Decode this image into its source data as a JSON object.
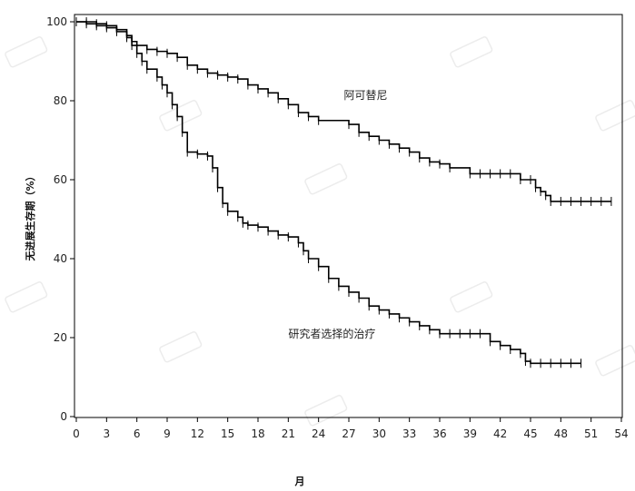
{
  "chart_data": {
    "type": "line",
    "title": "",
    "xlabel": "月",
    "ylabel": "无进展生存期（%）",
    "xlim": [
      0,
      54
    ],
    "ylim": [
      0,
      100
    ],
    "x_ticks": [
      "0",
      "3",
      "6",
      "9",
      "12",
      "15",
      "18",
      "21",
      "24",
      "27",
      "30",
      "33",
      "36",
      "39",
      "42",
      "45",
      "48",
      "51",
      "54"
    ],
    "y_ticks": [
      "0",
      "20",
      "40",
      "60",
      "80",
      "100"
    ],
    "grid": false,
    "legend": "none",
    "series": [
      {
        "name": "阿可替尼",
        "color": "#000000",
        "x": [
          0,
          1,
          2,
          3,
          4,
          5,
          5.5,
          6,
          7,
          8,
          9,
          10,
          11,
          12,
          13,
          14,
          15,
          16,
          17,
          18,
          19,
          20,
          21,
          22,
          23,
          24,
          27,
          28,
          29,
          30,
          31,
          32,
          33,
          34,
          35,
          36,
          37,
          39,
          40,
          41,
          42,
          43,
          44,
          45,
          45.5,
          46,
          46.5,
          47,
          48,
          49,
          50,
          51,
          52,
          53
        ],
        "y": [
          100,
          99.5,
          99,
          98.5,
          98,
          96.5,
          95,
          94,
          93,
          92.5,
          92,
          91,
          89,
          88,
          87,
          86.5,
          86,
          85.5,
          84,
          83,
          82,
          80.5,
          79,
          77,
          76,
          75,
          74,
          72,
          71,
          70,
          69,
          68,
          67,
          65.5,
          64.5,
          64,
          63,
          61.5,
          61.5,
          61.5,
          61.5,
          61.5,
          60,
          60,
          58,
          57,
          56,
          54.5,
          54.5,
          54.5,
          54.5,
          54.5,
          54.5,
          54.5
        ]
      },
      {
        "name": "研究者选择的治疗",
        "color": "#000000",
        "x": [
          0,
          1,
          2,
          3,
          4,
          5,
          5.5,
          6,
          6.5,
          7,
          8,
          8.5,
          9,
          9.5,
          10,
          10.5,
          11,
          12,
          13,
          13.5,
          14,
          14.5,
          15,
          16,
          16.5,
          17,
          18,
          19,
          20,
          21,
          22,
          22.5,
          23,
          24,
          25,
          26,
          27,
          28,
          29,
          30,
          31,
          32,
          33,
          34,
          35,
          36,
          37,
          38,
          39,
          40,
          41,
          42,
          43,
          44,
          44.5,
          45,
          46,
          47,
          48,
          49,
          50
        ],
        "y": [
          100,
          100,
          99.5,
          99,
          97.5,
          96,
          94,
          92,
          90,
          88,
          86,
          84,
          82,
          79,
          76,
          72,
          67,
          66.5,
          66,
          63,
          58,
          54,
          52,
          50.5,
          49,
          48.5,
          48,
          47,
          46,
          45.5,
          44,
          42,
          40,
          38,
          35,
          33,
          31.5,
          30,
          28,
          27,
          26,
          25,
          24,
          23,
          22,
          21,
          21,
          21,
          21,
          21,
          19,
          18,
          17,
          16,
          14,
          13.5,
          13.5,
          13.5,
          13.5,
          13.5,
          13.5
        ]
      }
    ],
    "annotations": [
      {
        "text": "阿可替尼",
        "x": 26.5,
        "y": 80.5
      },
      {
        "text": "研究者选择的治疗",
        "x": 21,
        "y": 20
      }
    ]
  }
}
